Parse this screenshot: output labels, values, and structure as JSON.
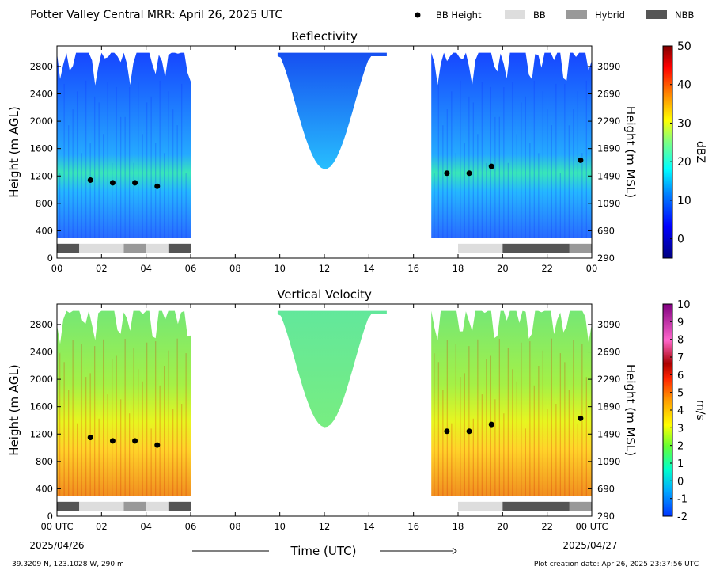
{
  "header": {
    "title": "Potter Valley Central MRR:  April 26, 2025 UTC",
    "legend": [
      {
        "label": "BB Height",
        "kind": "dot",
        "color": "#000000"
      },
      {
        "label": "BB",
        "kind": "box",
        "color": "#dddddd"
      },
      {
        "label": "Hybrid",
        "kind": "box",
        "color": "#999999"
      },
      {
        "label": "NBB",
        "kind": "box",
        "color": "#555555"
      }
    ]
  },
  "footer": {
    "xlabel": "Time (UTC)",
    "start_date": "2025/04/26",
    "end_date": "2025/04/27",
    "location": "39.3209 N, 123.1028 W, 290 m",
    "created": "Plot creation date: Apr 26, 2025 23:37:56 UTC"
  },
  "chart_data": [
    {
      "type": "heatmap",
      "title": "Reflectivity",
      "xlabel": "Time (UTC)",
      "ylabel": "Height (m AGL)",
      "y2label": "Height (m MSL)",
      "xlim": [
        0,
        24
      ],
      "ylim": [
        0,
        3100
      ],
      "xticks": [
        "00",
        "02",
        "04",
        "06",
        "08",
        "10",
        "12",
        "14",
        "16",
        "18",
        "20",
        "22",
        "00"
      ],
      "yticks": [
        0,
        400,
        800,
        1200,
        1600,
        2000,
        2400,
        2800
      ],
      "y2ticks": [
        290,
        690,
        1090,
        1490,
        1890,
        2290,
        2690,
        3090
      ],
      "colorbar": {
        "label": "dBZ",
        "min": -5,
        "max": 50,
        "ticks": [
          0,
          10,
          20,
          30,
          40,
          50
        ]
      },
      "bright_band_height": [
        {
          "time": 1.5,
          "height": 1140
        },
        {
          "time": 2.5,
          "height": 1100
        },
        {
          "time": 3.5,
          "height": 1100
        },
        {
          "time": 4.5,
          "height": 1050
        },
        {
          "time": 17.5,
          "height": 1240
        },
        {
          "time": 18.5,
          "height": 1240
        },
        {
          "time": 19.5,
          "height": 1340
        },
        {
          "time": 23.5,
          "height": 1430
        }
      ],
      "band_types": [
        {
          "start": 0,
          "end": 1,
          "type": "NBB"
        },
        {
          "start": 1,
          "end": 3,
          "type": "BB"
        },
        {
          "start": 3,
          "end": 4,
          "type": "Hybrid"
        },
        {
          "start": 4,
          "end": 5,
          "type": "BB"
        },
        {
          "start": 5,
          "end": 6,
          "type": "NBB"
        },
        {
          "start": 18,
          "end": 20,
          "type": "BB"
        },
        {
          "start": 20,
          "end": 23,
          "type": "NBB"
        },
        {
          "start": 23,
          "end": 24,
          "type": "Hybrid"
        }
      ],
      "echo_regions": [
        {
          "start": 0.0,
          "end": 6.0,
          "base": 300,
          "top": 3000
        },
        {
          "start": 9.9,
          "end": 14.8,
          "base": 1350,
          "top": 3000
        },
        {
          "start": 16.8,
          "end": 24.0,
          "base": 300,
          "top": 3000
        }
      ]
    },
    {
      "type": "heatmap",
      "title": "Vertical Velocity",
      "xlabel": "Time (UTC)",
      "ylabel": "Height (m AGL)",
      "y2label": "Height (m MSL)",
      "xlim": [
        0,
        24
      ],
      "ylim": [
        0,
        3100
      ],
      "xticks": [
        "00 UTC",
        "02",
        "04",
        "06",
        "08",
        "10",
        "12",
        "14",
        "16",
        "18",
        "20",
        "22",
        "00 UTC"
      ],
      "yticks": [
        0,
        400,
        800,
        1200,
        1600,
        2000,
        2400,
        2800
      ],
      "y2ticks": [
        290,
        690,
        1090,
        1490,
        1890,
        2290,
        2690,
        3090
      ],
      "colorbar": {
        "label": "m/s",
        "min": -2,
        "max": 10,
        "ticks": [
          -2,
          -1,
          0,
          1,
          2,
          3,
          4,
          5,
          6,
          7,
          8,
          9,
          10
        ]
      },
      "bright_band_height": [
        {
          "time": 1.5,
          "height": 1150
        },
        {
          "time": 2.5,
          "height": 1100
        },
        {
          "time": 3.5,
          "height": 1100
        },
        {
          "time": 4.5,
          "height": 1040
        },
        {
          "time": 17.5,
          "height": 1240
        },
        {
          "time": 18.5,
          "height": 1240
        },
        {
          "time": 19.5,
          "height": 1340
        },
        {
          "time": 23.5,
          "height": 1430
        }
      ],
      "band_types": [
        {
          "start": 0,
          "end": 1,
          "type": "NBB"
        },
        {
          "start": 1,
          "end": 3,
          "type": "BB"
        },
        {
          "start": 3,
          "end": 4,
          "type": "Hybrid"
        },
        {
          "start": 4,
          "end": 5,
          "type": "BB"
        },
        {
          "start": 5,
          "end": 6,
          "type": "NBB"
        },
        {
          "start": 18,
          "end": 20,
          "type": "BB"
        },
        {
          "start": 20,
          "end": 23,
          "type": "NBB"
        },
        {
          "start": 23,
          "end": 24,
          "type": "Hybrid"
        }
      ],
      "echo_regions": [
        {
          "start": 0.0,
          "end": 6.0,
          "base": 300,
          "top": 3000
        },
        {
          "start": 9.9,
          "end": 14.8,
          "base": 1350,
          "top": 3000
        },
        {
          "start": 16.8,
          "end": 24.0,
          "base": 300,
          "top": 3000
        }
      ]
    }
  ]
}
